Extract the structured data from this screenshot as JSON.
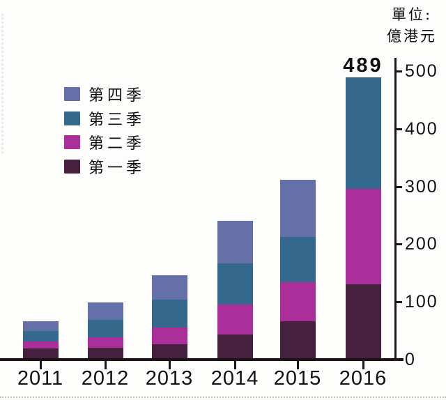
{
  "unit_label": {
    "line1": "單位:",
    "line2": "億港元"
  },
  "legend": {
    "items": [
      {
        "label": "第四季",
        "color": "#6570a9"
      },
      {
        "label": "第三季",
        "color": "#35688d"
      },
      {
        "label": "第二季",
        "color": "#aa2f9a"
      },
      {
        "label": "第一季",
        "color": "#46203f"
      }
    ]
  },
  "chart_data": {
    "type": "bar",
    "stacked": true,
    "title": "",
    "xlabel": "",
    "ylabel": "單位:億港元",
    "categories": [
      "2011",
      "2012",
      "2013",
      "2014",
      "2015",
      "2016"
    ],
    "series": [
      {
        "name": "第一季",
        "color": "#46203f",
        "values": [
          19,
          20,
          26,
          44,
          67,
          131
        ]
      },
      {
        "name": "第二季",
        "color": "#aa2f9a",
        "values": [
          13,
          19,
          30,
          52,
          67,
          165
        ]
      },
      {
        "name": "第三季",
        "color": "#35688d",
        "values": [
          18,
          30,
          48,
          71,
          78,
          193
        ]
      },
      {
        "name": "第四季",
        "color": "#6570a9",
        "values": [
          16,
          30,
          42,
          73,
          100,
          0
        ]
      }
    ],
    "yticks": [
      0,
      100,
      200,
      300,
      400,
      500
    ],
    "ylim": [
      0,
      520
    ],
    "grid": false,
    "legend_position": "upper-left",
    "axis_side": "right",
    "annotations": [
      {
        "category": "2016",
        "text": "489"
      }
    ]
  }
}
